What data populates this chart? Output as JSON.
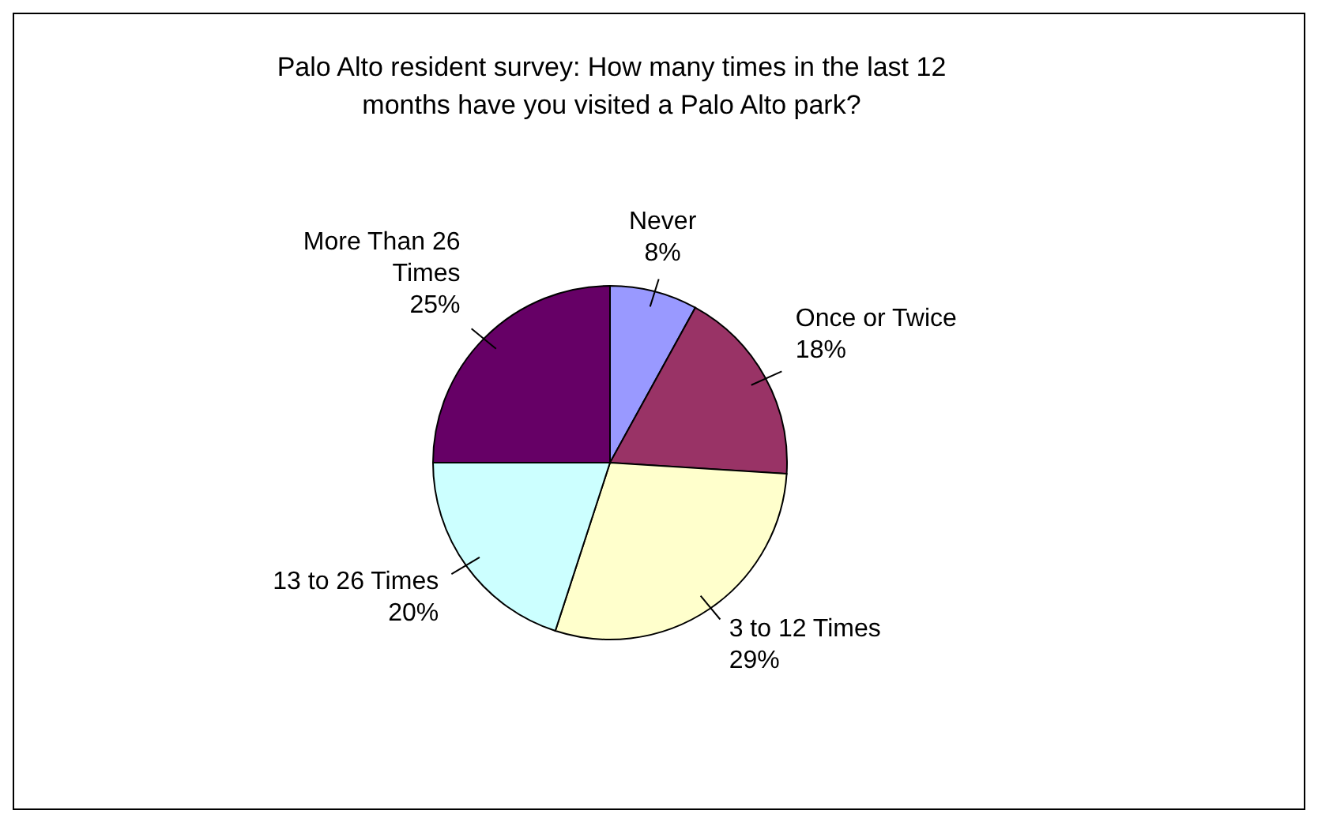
{
  "chart_data": {
    "type": "pie",
    "title": "Palo Alto resident survey: How many times in the last 12 months have you visited a Palo Alto park?",
    "categories": [
      "Never",
      "Once or Twice",
      "3 to 12 Times",
      "13 to 26 Times",
      "More Than 26 Times"
    ],
    "values": [
      8,
      18,
      29,
      20,
      25
    ],
    "value_labels": [
      "8%",
      "18%",
      "29%",
      "20%",
      "25%"
    ],
    "colors": [
      "#9999ff",
      "#993366",
      "#ffffcc",
      "#ccffff",
      "#660066"
    ]
  }
}
